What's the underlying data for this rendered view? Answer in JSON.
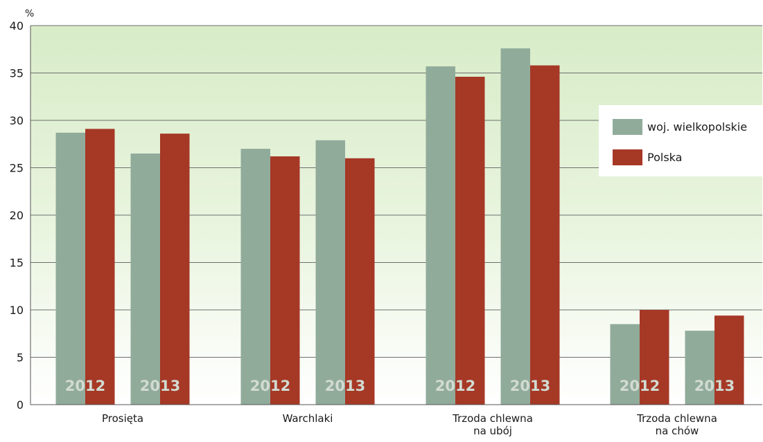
{
  "chart_data": {
    "type": "bar",
    "y_unit": "%",
    "ylim": [
      0,
      40
    ],
    "y_ticks": [
      0,
      5,
      10,
      15,
      20,
      25,
      30,
      35,
      40
    ],
    "grid": true,
    "legend_position": "right",
    "groups": [
      {
        "label_lines": [
          "Prosięta"
        ],
        "years": [
          {
            "year": "2012",
            "values": [
              28.7,
              29.1
            ]
          },
          {
            "year": "2013",
            "values": [
              26.5,
              28.6
            ]
          }
        ]
      },
      {
        "label_lines": [
          "Warchlaki"
        ],
        "years": [
          {
            "year": "2012",
            "values": [
              27.0,
              26.2
            ]
          },
          {
            "year": "2013",
            "values": [
              27.9,
              26.0
            ]
          }
        ]
      },
      {
        "label_lines": [
          "Trzoda chlewna",
          "na ubój"
        ],
        "years": [
          {
            "year": "2012",
            "values": [
              35.7,
              34.6
            ]
          },
          {
            "year": "2013",
            "values": [
              37.6,
              35.8
            ]
          }
        ]
      },
      {
        "label_lines": [
          "Trzoda chlewna",
          "na chów"
        ],
        "years": [
          {
            "year": "2012",
            "values": [
              8.5,
              10.0
            ]
          },
          {
            "year": "2013",
            "values": [
              7.8,
              9.4
            ]
          }
        ]
      }
    ],
    "series": [
      {
        "name": "woj. wielkopolskie",
        "color": "#91ab9b"
      },
      {
        "name": "Polska",
        "color": "#a63826"
      }
    ]
  }
}
